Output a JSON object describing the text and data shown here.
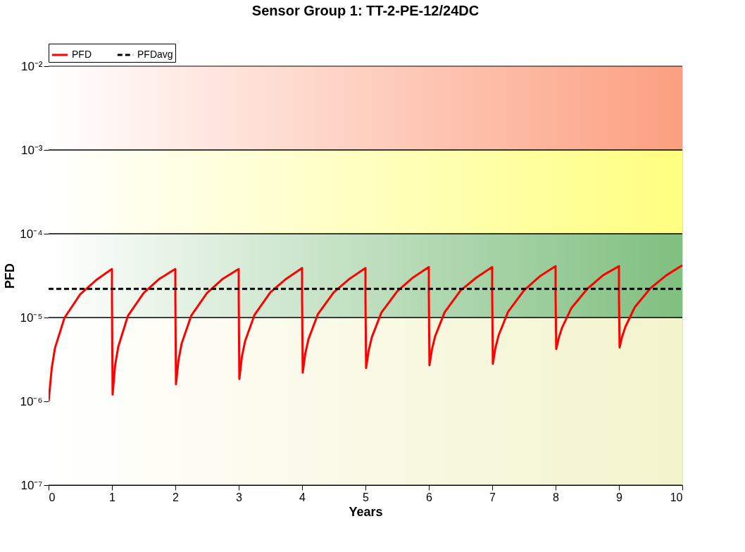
{
  "chart_data": {
    "type": "line",
    "title": "Sensor Group 1: TT-2-PE-12/24DC",
    "xlabel": "Years",
    "ylabel": "PFD",
    "log": "y",
    "legend": "top left",
    "xlim": [
      0,
      10
    ],
    "xticks": [
      0,
      1,
      2,
      3,
      4,
      5,
      6,
      7,
      8,
      9,
      10
    ],
    "ylim": [
      1e-07,
      0.01
    ],
    "yticks": [
      {
        "value": 1e-07,
        "label": "10⁻⁷"
      },
      {
        "value": 1e-06,
        "label": "10⁻⁶"
      },
      {
        "value": 1e-05,
        "label": "10⁻⁵"
      },
      {
        "value": 0.0001,
        "label": "10⁻⁴"
      },
      {
        "value": 0.001,
        "label": "10⁻³"
      },
      {
        "value": 0.01,
        "label": "10⁻²"
      }
    ],
    "bands": [
      {
        "axis": "y",
        "from": 1e-07,
        "to": 1e-05,
        "color": "#f3f3cc"
      },
      {
        "axis": "y",
        "from": 1e-05,
        "to": 0.0001,
        "color": "#7fbf7f"
      },
      {
        "axis": "y",
        "from": 0.0001,
        "to": 0.001,
        "color": "#ffff80"
      },
      {
        "axis": "y",
        "from": 0.001,
        "to": 0.01,
        "color": "#fc9f80"
      }
    ],
    "series": [
      {
        "name": "PFD",
        "color": "#ff0000",
        "line_style": "solid",
        "x": [
          0,
          0.05,
          0.1,
          0.25,
          0.5,
          0.75,
          1,
          1,
          1.01,
          1.05,
          1.1,
          1.25,
          1.5,
          1.75,
          2,
          2,
          2.01,
          2.05,
          2.1,
          2.25,
          2.5,
          2.75,
          3,
          3,
          3.01,
          3.05,
          3.1,
          3.25,
          3.5,
          3.75,
          4,
          4,
          4.01,
          4.05,
          4.1,
          4.25,
          4.5,
          4.75,
          5,
          5,
          5.01,
          5.05,
          5.1,
          5.25,
          5.5,
          5.75,
          6,
          6,
          6.01,
          6.05,
          6.1,
          6.25,
          6.5,
          6.75,
          7,
          7,
          7.01,
          7.05,
          7.1,
          7.25,
          7.5,
          7.75,
          8,
          8,
          8.01,
          8.05,
          8.1,
          8.25,
          8.5,
          8.75,
          9,
          9,
          9.01,
          9.05,
          9.1,
          9.25,
          9.5,
          9.75,
          10
        ],
        "values": [
          1e-06,
          2.5e-06,
          4.3e-06,
          9.9e-06,
          1.9e-05,
          2.8e-05,
          3.8e-05,
          1.8e-05,
          1.2e-06,
          2.7e-06,
          4.5e-06,
          1.04e-05,
          1.96e-05,
          2.9e-05,
          3.8e-05,
          1.8e-05,
          1.6e-06,
          3.1e-06,
          4.9e-06,
          1.05e-05,
          1.96e-05,
          2.9e-05,
          3.8e-05,
          1.8e-05,
          1.85e-06,
          3.4e-06,
          5.2e-06,
          1.08e-05,
          2e-05,
          2.9e-05,
          3.9e-05,
          1.8e-05,
          2.2e-06,
          3.7e-06,
          5.5e-06,
          1.1e-05,
          2e-05,
          2.9e-05,
          3.9e-05,
          1.8e-05,
          2.5e-06,
          4e-06,
          5.8e-06,
          1.14e-05,
          2.05e-05,
          3e-05,
          4e-05,
          1.9e-05,
          2.7e-06,
          4.2e-06,
          6e-06,
          1.16e-05,
          2.1e-05,
          3e-05,
          4e-05,
          1.9e-05,
          2.8e-06,
          4.3e-06,
          6.1e-06,
          1.17e-05,
          2.1e-05,
          3.1e-05,
          4.1e-05,
          1.9e-05,
          4.2e-06,
          5.7e-06,
          7.5e-06,
          1.3e-05,
          2.2e-05,
          3.2e-05,
          4.1e-05,
          1.9e-05,
          4.4e-06,
          5.9e-06,
          7.7e-06,
          1.33e-05,
          2.25e-05,
          3.2e-05,
          4.2e-05
        ]
      },
      {
        "name": "PFDavg",
        "color": "#000000",
        "line_style": "dashed",
        "x": [
          0,
          10
        ],
        "values": [
          2.2e-05,
          2.2e-05
        ]
      }
    ]
  }
}
